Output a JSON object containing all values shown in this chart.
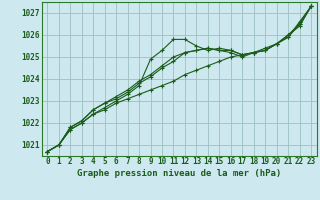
{
  "title": "Graphe pression niveau de la mer (hPa)",
  "bg_color": "#cde8ee",
  "grid_color": "#9bbfbf",
  "line_color": "#1a5c1a",
  "border_color": "#2a7a2a",
  "ylim": [
    1020.5,
    1027.5
  ],
  "yticks": [
    1021,
    1022,
    1023,
    1024,
    1025,
    1026,
    1027
  ],
  "xlim": [
    -0.5,
    23.5
  ],
  "series": [
    [
      1020.7,
      1021.0,
      1021.7,
      1022.0,
      1022.4,
      1022.7,
      1023.0,
      1023.3,
      1023.7,
      1024.9,
      1025.3,
      1025.8,
      1025.8,
      1025.5,
      1025.3,
      1025.4,
      1025.3,
      1025.1,
      1025.2,
      1025.3,
      1025.6,
      1025.9,
      1026.6,
      1027.3
    ],
    [
      1020.7,
      1021.0,
      1021.7,
      1022.0,
      1022.4,
      1022.6,
      1022.9,
      1023.1,
      1023.3,
      1023.5,
      1023.7,
      1023.9,
      1024.2,
      1024.4,
      1024.6,
      1024.8,
      1025.0,
      1025.1,
      1025.2,
      1025.4,
      1025.6,
      1025.9,
      1026.5,
      1027.3
    ],
    [
      1020.7,
      1021.0,
      1021.8,
      1022.1,
      1022.6,
      1022.9,
      1023.2,
      1023.5,
      1023.9,
      1024.2,
      1024.6,
      1025.0,
      1025.2,
      1025.3,
      1025.4,
      1025.3,
      1025.3,
      1025.1,
      1025.2,
      1025.3,
      1025.6,
      1026.0,
      1026.5,
      1027.3
    ],
    [
      1020.7,
      1021.0,
      1021.8,
      1022.1,
      1022.6,
      1022.9,
      1023.1,
      1023.4,
      1023.8,
      1024.1,
      1024.5,
      1024.8,
      1025.2,
      1025.3,
      1025.4,
      1025.3,
      1025.2,
      1025.0,
      1025.2,
      1025.3,
      1025.6,
      1026.0,
      1026.4,
      1027.3
    ]
  ],
  "figsize": [
    3.2,
    2.0
  ],
  "dpi": 100,
  "ylabel_fontsize": 5.5,
  "xlabel_fontsize": 6.0,
  "title_fontsize": 6.5
}
